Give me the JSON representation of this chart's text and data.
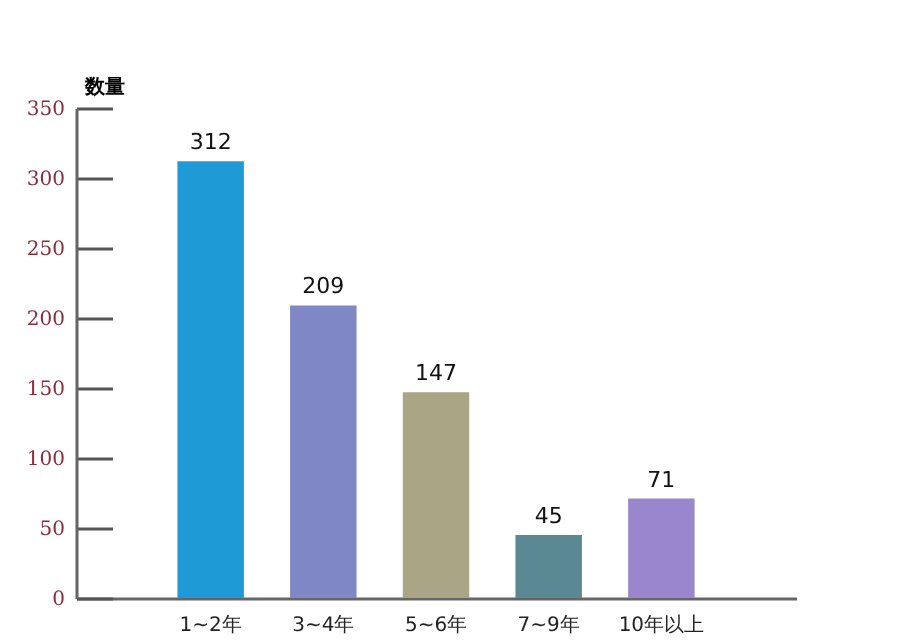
{
  "chart_data": {
    "type": "bar",
    "ylabel": "数量",
    "categories": [
      "1~2年",
      "3~4年",
      "5~6年",
      "7~9年",
      "10年以上"
    ],
    "values": [
      312,
      209,
      147,
      45,
      71
    ],
    "colors": [
      "#1e9bd7",
      "#7f88c4",
      "#aaa584",
      "#5b8993",
      "#9a86cc"
    ],
    "ylim": [
      0,
      350
    ],
    "yticks": [
      0,
      50,
      100,
      150,
      200,
      250,
      300,
      350
    ],
    "data_labels": true,
    "grid": false
  }
}
